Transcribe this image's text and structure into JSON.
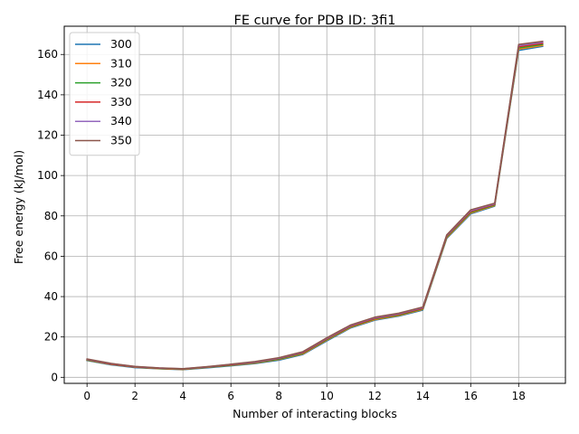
{
  "chart_data": {
    "type": "line",
    "title": "FE curve for PDB ID: 3fi1",
    "xlabel": "Number of interacting blocks",
    "ylabel": "Free energy (kJ/mol)",
    "xlim": [
      -0.95,
      19.95
    ],
    "ylim": [
      -3.0,
      174.0
    ],
    "xticks": [
      0,
      2,
      4,
      6,
      8,
      10,
      12,
      14,
      16,
      18
    ],
    "yticks": [
      0,
      20,
      40,
      60,
      80,
      100,
      120,
      140,
      160
    ],
    "grid": true,
    "legend_position": "top-left",
    "x": [
      0,
      1,
      2,
      3,
      4,
      5,
      6,
      7,
      8,
      9,
      10,
      11,
      12,
      13,
      14,
      15,
      16,
      17,
      18,
      19
    ],
    "series": [
      {
        "name": "300",
        "color": "#1f77b4",
        "values": [
          8.3,
          6.2,
          4.8,
          4.2,
          3.8,
          4.7,
          5.7,
          6.8,
          8.5,
          11.3,
          18.0,
          24.5,
          28.3,
          30.3,
          33.3,
          68.8,
          81.0,
          84.8,
          162.0,
          164.0
        ]
      },
      {
        "name": "310",
        "color": "#ff7f0e",
        "values": [
          8.5,
          6.4,
          5.0,
          4.3,
          3.9,
          4.9,
          5.9,
          7.0,
          8.8,
          11.6,
          18.4,
          24.8,
          28.6,
          30.6,
          33.6,
          69.2,
          81.4,
          85.1,
          162.6,
          164.5
        ]
      },
      {
        "name": "320",
        "color": "#2ca02c",
        "values": [
          8.6,
          6.5,
          5.1,
          4.4,
          4.0,
          5.0,
          6.0,
          7.2,
          9.0,
          11.9,
          18.7,
          25.1,
          28.9,
          30.9,
          33.9,
          69.6,
          81.8,
          85.4,
          163.2,
          165.0
        ]
      },
      {
        "name": "330",
        "color": "#d62728",
        "values": [
          8.8,
          6.6,
          5.2,
          4.5,
          4.1,
          5.1,
          6.2,
          7.4,
          9.3,
          12.2,
          19.0,
          25.4,
          29.2,
          31.2,
          34.2,
          70.0,
          82.2,
          85.7,
          163.8,
          165.5
        ]
      },
      {
        "name": "340",
        "color": "#9467bd",
        "values": [
          8.9,
          6.8,
          5.3,
          4.6,
          4.2,
          5.2,
          6.4,
          7.6,
          9.5,
          12.5,
          19.3,
          25.7,
          29.5,
          31.5,
          34.5,
          70.3,
          82.6,
          86.0,
          164.4,
          166.0
        ]
      },
      {
        "name": "350",
        "color": "#8c564b",
        "values": [
          9.1,
          6.9,
          5.4,
          4.7,
          4.3,
          5.3,
          6.5,
          7.8,
          9.7,
          12.7,
          19.6,
          26.0,
          29.8,
          31.8,
          34.8,
          70.6,
          83.0,
          86.3,
          165.0,
          166.5
        ]
      }
    ]
  }
}
